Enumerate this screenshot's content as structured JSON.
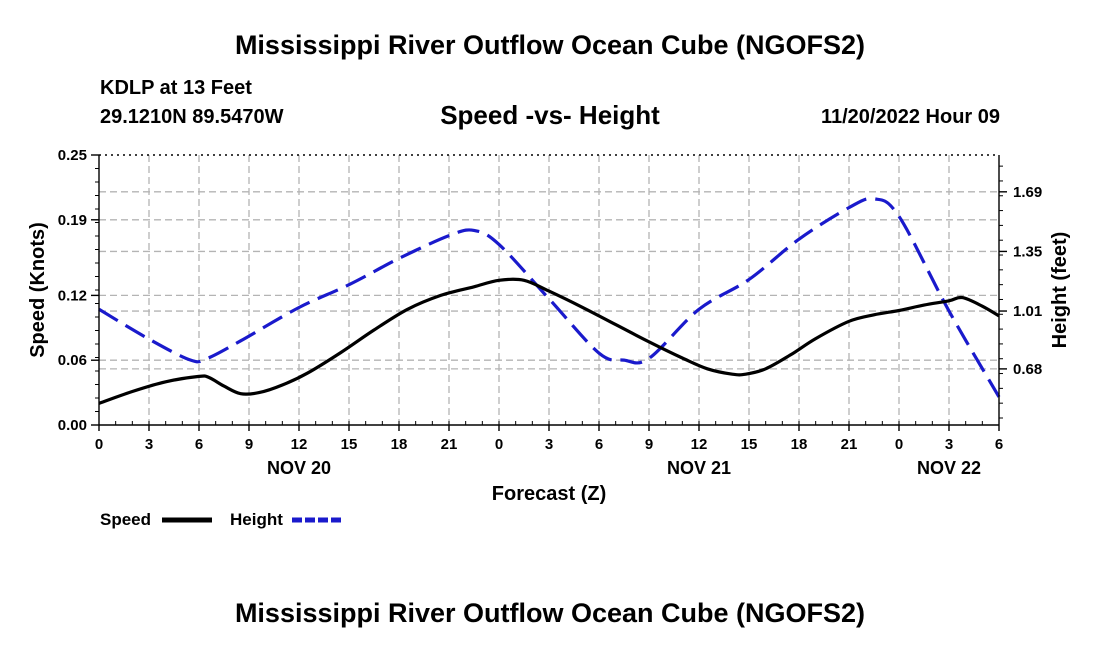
{
  "header": {
    "title": "Mississippi River Outflow Ocean Cube (NGOFS2)",
    "station": "KDLP at 13 Feet",
    "coords": "29.1210N  89.5470W",
    "subtitle": "Speed -vs- Height",
    "datetime": "11/20/2022 Hour 09"
  },
  "footer": {
    "title": "Mississippi River Outflow Ocean Cube (NGOFS2)"
  },
  "chart_data": {
    "type": "line",
    "title": "Speed -vs- Height",
    "xlabel": "Forecast (Z)",
    "ylabel_left": "Speed (Knots)",
    "ylabel_right": "Height (feet)",
    "x_range": [
      0,
      54
    ],
    "x_tick_values": [
      0,
      3,
      6,
      9,
      12,
      15,
      18,
      21,
      24,
      27,
      30,
      33,
      36,
      39,
      42,
      45,
      48,
      51,
      54
    ],
    "x_tick_labels": [
      "0",
      "3",
      "6",
      "9",
      "12",
      "15",
      "18",
      "21",
      "0",
      "3",
      "6",
      "9",
      "12",
      "15",
      "18",
      "21",
      "0",
      "3",
      "6"
    ],
    "date_labels": [
      {
        "at": 12,
        "label": "NOV 20"
      },
      {
        "at": 36,
        "label": "NOV 21"
      },
      {
        "at": 51,
        "label": "NOV 22"
      }
    ],
    "y_left": {
      "range": [
        0,
        0.25
      ],
      "ticks": [
        0.0,
        0.06,
        0.12,
        0.19,
        0.25
      ],
      "tick_labels": [
        "0.00",
        "0.06",
        "0.12",
        "0.19",
        "0.25"
      ]
    },
    "y_right": {
      "range": [
        0.36,
        1.9
      ],
      "ticks": [
        0.68,
        1.01,
        1.35,
        1.69
      ],
      "tick_labels": [
        "0.68",
        "1.01",
        "1.35",
        "1.69"
      ]
    },
    "grid": true,
    "series": [
      {
        "name": "Speed",
        "axis": "left",
        "color": "#000000",
        "style": "solid",
        "x": [
          0,
          2,
          4,
          6,
          6.6,
          7.5,
          8.5,
          9.6,
          11,
          12.5,
          14.5,
          16.5,
          18.5,
          20.5,
          22.5,
          24,
          25.5,
          27,
          29,
          31,
          33,
          35,
          36.5,
          38,
          38.8,
          40,
          41.5,
          43,
          45,
          46.5,
          48,
          49.5,
          51,
          51.8,
          53,
          54
        ],
        "values": [
          0.02,
          0.031,
          0.04,
          0.045,
          0.044,
          0.036,
          0.029,
          0.03,
          0.037,
          0.048,
          0.067,
          0.088,
          0.107,
          0.12,
          0.128,
          0.134,
          0.134,
          0.124,
          0.109,
          0.093,
          0.077,
          0.062,
          0.052,
          0.047,
          0.047,
          0.052,
          0.065,
          0.08,
          0.096,
          0.102,
          0.106,
          0.111,
          0.115,
          0.118,
          0.11,
          0.101
        ]
      },
      {
        "name": "Height",
        "axis": "right",
        "color": "#1a1acc",
        "style": "dashed",
        "x": [
          0,
          3,
          5.5,
          6.5,
          8.5,
          12,
          15,
          18,
          21,
          22.5,
          24,
          27,
          30,
          31.5,
          33,
          36,
          39,
          42,
          45,
          46.5,
          48,
          51,
          54
        ],
        "values": [
          1.02,
          0.85,
          0.73,
          0.74,
          0.84,
          1.03,
          1.16,
          1.31,
          1.44,
          1.47,
          1.39,
          1.08,
          0.77,
          0.73,
          0.74,
          1.02,
          1.19,
          1.42,
          1.6,
          1.65,
          1.55,
          1.01,
          0.52
        ]
      }
    ],
    "legend": [
      {
        "label": "Speed",
        "color": "#000000",
        "style": "solid"
      },
      {
        "label": "Height",
        "color": "#1a1acc",
        "style": "dashed"
      }
    ],
    "legend_position": "bottom-left"
  }
}
